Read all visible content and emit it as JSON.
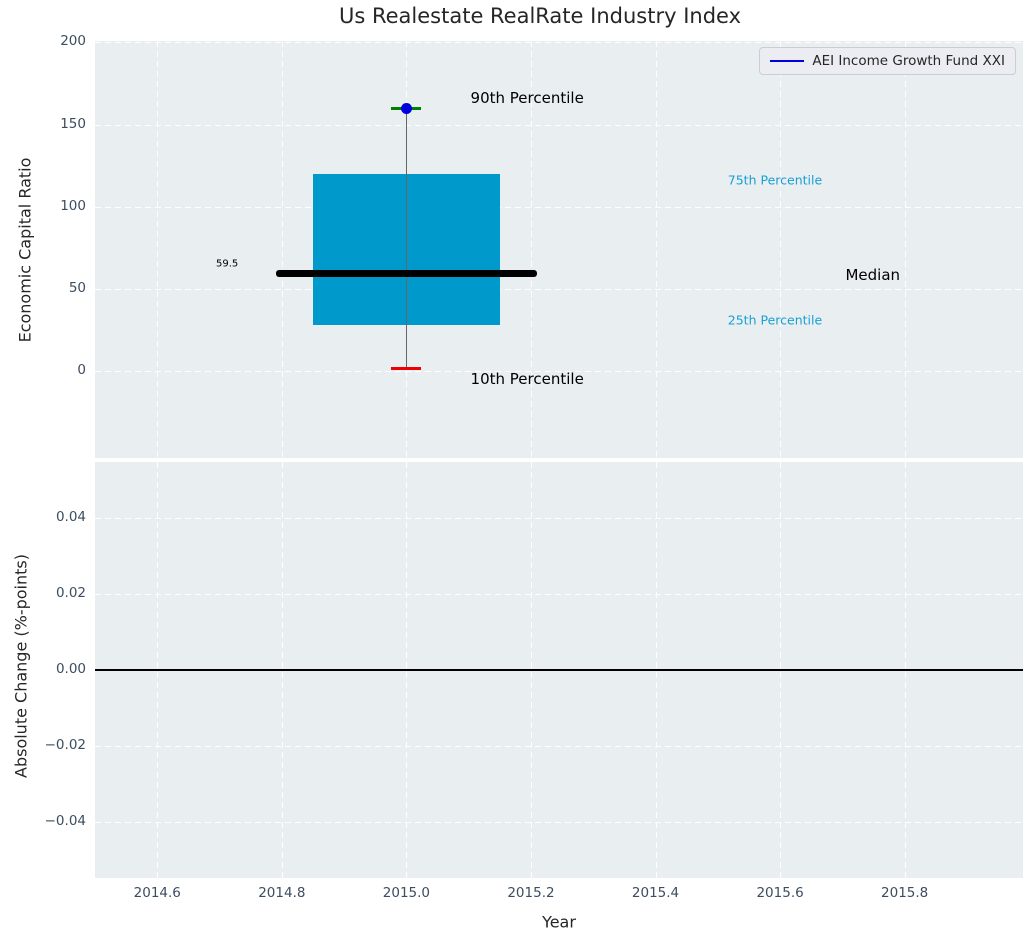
{
  "title": "Us Realestate RealRate Industry Index",
  "colors": {
    "panel_bg": "#e9eef0",
    "grid": "#ffffff",
    "tick_label": "#3d4d60",
    "axis_label": "#262626",
    "percentile_label": "#1b9fd4",
    "legend_line": "#0000dd"
  },
  "chart_data": {
    "type": "boxplot",
    "title": "Us Realestate RealRate Industry Index",
    "legend": [
      {
        "label": "AEI Income Growth Fund XXI",
        "color": "#0000dd"
      }
    ],
    "panels": [
      {
        "name": "economic-capital-ratio",
        "ylabel": "Economic Capital Ratio",
        "xlabel": "",
        "ylim": [
          -52.6,
          200.8
        ],
        "xlim": [
          2014.5,
          2015.99
        ],
        "grid": true,
        "yticks": [
          {
            "value": 0,
            "label": "0"
          },
          {
            "value": 50,
            "label": "50"
          },
          {
            "value": 100,
            "label": "100"
          },
          {
            "value": 150,
            "label": "150"
          },
          {
            "value": 200,
            "label": "200"
          }
        ],
        "box": {
          "x": 2015.0,
          "box_halfwidth": 0.15,
          "median_halfwidth": 0.21,
          "cap_halfwidth": 0.024,
          "p10": 2,
          "p25": 28,
          "median": 59.5,
          "p75": 120,
          "p90": 160,
          "box_color": "#0099cc",
          "median_color": "#000000",
          "whisker_color": "#666666",
          "cap_top_color": "#008000",
          "cap_bottom_color": "#ee0000",
          "marker_color": "#0000dd"
        },
        "annotations": [
          {
            "name": "90th-percentile",
            "text": "90th Percentile",
            "x": 2015.103,
            "y": 166,
            "color": "#000000",
            "size": 15,
            "align": "left"
          },
          {
            "name": "10th-percentile",
            "text": "10th Percentile",
            "x": 2015.103,
            "y": -4.5,
            "color": "#000000",
            "size": 15,
            "align": "left"
          },
          {
            "name": "75th-percentile",
            "text": "75th Percentile",
            "x": 2015.516,
            "y": 116.5,
            "color": "#1b9fd4",
            "size": 12.5,
            "align": "left"
          },
          {
            "name": "25th-percentile",
            "text": "25th Percentile",
            "x": 2015.516,
            "y": 31.3,
            "color": "#1b9fd4",
            "size": 12.5,
            "align": "left"
          },
          {
            "name": "median",
            "text": "Median",
            "x": 2015.705,
            "y": 58.8,
            "color": "#000000",
            "size": 15,
            "align": "left"
          },
          {
            "name": "median-value",
            "text": "59.5",
            "x": 2014.73,
            "y": 65.3,
            "color": "#000000",
            "size": 10,
            "align": "right"
          }
        ]
      },
      {
        "name": "absolute-change",
        "ylabel": "Absolute Change (%-points)",
        "xlabel": "Year",
        "ylim": [
          -0.0548,
          0.0548
        ],
        "xlim": [
          2014.5,
          2015.99
        ],
        "grid": true,
        "zero_line": 0.0,
        "yticks": [
          {
            "value": -0.04,
            "label": "−0.04"
          },
          {
            "value": -0.02,
            "label": "−0.02"
          },
          {
            "value": 0.0,
            "label": "0.00"
          },
          {
            "value": 0.02,
            "label": "0.02"
          },
          {
            "value": 0.04,
            "label": "0.04"
          }
        ],
        "xticks": [
          {
            "value": 2014.6,
            "label": "2014.6"
          },
          {
            "value": 2014.8,
            "label": "2014.8"
          },
          {
            "value": 2015.0,
            "label": "2015.0"
          },
          {
            "value": 2015.2,
            "label": "2015.2"
          },
          {
            "value": 2015.4,
            "label": "2015.4"
          },
          {
            "value": 2015.6,
            "label": "2015.6"
          },
          {
            "value": 2015.8,
            "label": "2015.8"
          }
        ]
      }
    ]
  }
}
